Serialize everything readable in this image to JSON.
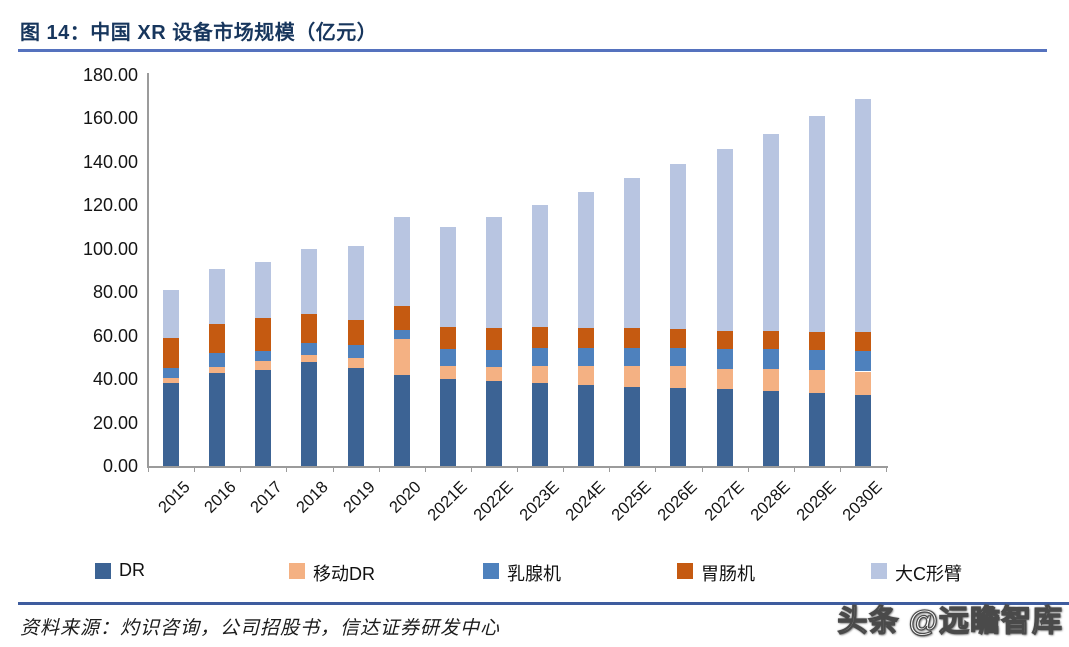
{
  "figure": {
    "title": "图 14：中国 XR 设备市场规模（亿元）",
    "source": "资料来源：灼识咨询，公司招股书，信达证券研发中心",
    "watermark": "头条 @远瞻智库"
  },
  "colors": {
    "title_text": "#17365D",
    "title_rule": "#5572BE",
    "footer_rule": "#3E5C9E",
    "axis": "#9b9b9b"
  },
  "chart_data": {
    "type": "bar",
    "stacked": true,
    "title": "中国XR设备市场规模（亿元）",
    "categories": [
      "2015",
      "2016",
      "2017",
      "2018",
      "2019",
      "2020",
      "2021E",
      "2022E",
      "2023E",
      "2024E",
      "2025E",
      "2026E",
      "2027E",
      "2028E",
      "2029E",
      "2030E"
    ],
    "series": [
      {
        "name": "DR",
        "color": "#3C6394",
        "values": [
          38,
          43,
          44,
          48,
          45,
          42,
          40,
          39,
          38,
          37.5,
          36.5,
          36,
          35.5,
          34.5,
          33.5,
          32.5
        ]
      },
      {
        "name": "移动DR",
        "color": "#F4B183",
        "values": [
          2.5,
          2.5,
          4.5,
          3,
          4.5,
          16.5,
          6,
          6.5,
          8,
          8.5,
          9.5,
          10,
          9,
          10,
          10.5,
          11
        ]
      },
      {
        "name": "乳腺机",
        "color": "#4E81BD",
        "values": [
          4.5,
          6.5,
          4.5,
          5.5,
          6,
          4,
          8,
          8,
          8.5,
          8.5,
          8.5,
          8.5,
          9.5,
          9.5,
          9.5,
          9.5
        ]
      },
      {
        "name": "胃肠机",
        "color": "#C55A11",
        "values": [
          14,
          13.5,
          15,
          13.5,
          11.5,
          11,
          10,
          10,
          9.5,
          9,
          9,
          8.5,
          8,
          8,
          8,
          8.5
        ]
      },
      {
        "name": "大C形臂",
        "color": "#B8C5E1",
        "values": [
          22,
          25,
          26,
          30,
          34.5,
          41,
          46,
          51,
          56,
          62.5,
          69,
          76,
          84,
          91,
          99.5,
          107.5
        ]
      }
    ],
    "totals": [
      81,
      90.5,
      94,
      100,
      101.5,
      114.5,
      110,
      114.5,
      120,
      126,
      132.5,
      139,
      146,
      153,
      161,
      169
    ],
    "ylim": [
      0,
      180
    ],
    "ytick_step": 20,
    "yticks": [
      "0.00",
      "20.00",
      "40.00",
      "60.00",
      "80.00",
      "100.00",
      "120.00",
      "140.00",
      "160.00",
      "180.00"
    ],
    "xlabel": "",
    "ylabel": "",
    "grid": false,
    "legend_position": "bottom"
  }
}
